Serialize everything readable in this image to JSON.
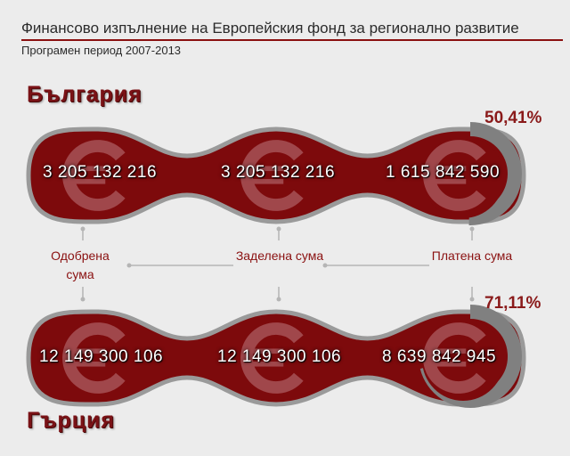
{
  "header": {
    "title": "Финансово изпълнение на Европейския фонд за регионално развитие",
    "subtitle": "Програмен период 2007-2013"
  },
  "colors": {
    "band": "#7d0a0c",
    "band_outline": "#9a9a9a",
    "euro_symbol": "#a0474b",
    "progress": "#808080",
    "label": "#8a1010"
  },
  "labels": [
    "Одобрена сума",
    "Заделена сума",
    "Платена сума"
  ],
  "chart_data": [
    {
      "type": "bar",
      "country": "България",
      "categories": [
        "Одобрена сума",
        "Заделена сума",
        "Платена сума"
      ],
      "value_labels": [
        "3 205 132 216",
        "3 205 132 216",
        "1 615 842 590"
      ],
      "values": [
        3205132216,
        3205132216,
        1615842590
      ],
      "paid_share_label": "50,41%",
      "paid_share": 50.41
    },
    {
      "type": "bar",
      "country": "Гърция",
      "categories": [
        "Одобрена сума",
        "Заделена сума",
        "Платена сума"
      ],
      "value_labels": [
        "12 149 300 106",
        "12 149 300 106",
        "8 639 842 945"
      ],
      "values": [
        12149300106,
        12149300106,
        8639842945
      ],
      "paid_share_label": "71,11%",
      "paid_share": 71.11
    }
  ]
}
